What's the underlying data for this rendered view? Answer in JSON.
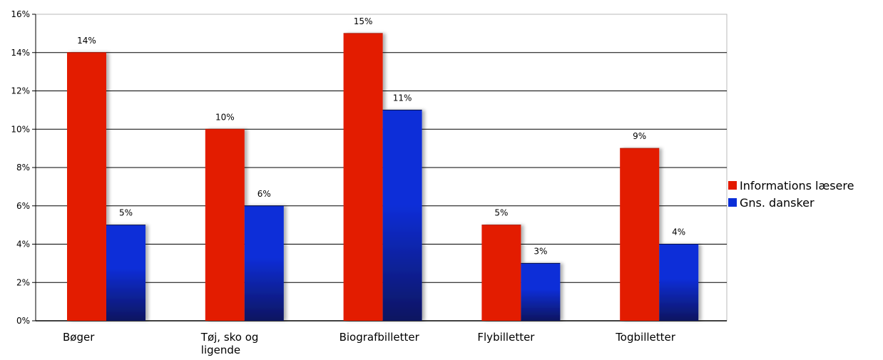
{
  "chart_data": {
    "type": "bar",
    "categories": [
      "Bøger",
      "Tøj, sko og ligende",
      "Biografbilletter",
      "Flybilletter",
      "Togbilletter"
    ],
    "category_lines": [
      [
        "Bøger"
      ],
      [
        "Tøj, sko og",
        "ligende"
      ],
      [
        "Biografbilletter"
      ],
      [
        "Flybilletter"
      ],
      [
        "Togbilletter"
      ]
    ],
    "series": [
      {
        "name": "Informations læsere",
        "values": [
          14,
          10,
          15,
          5,
          9
        ],
        "labels": [
          "14%",
          "10%",
          "15%",
          "5%",
          "9%"
        ],
        "color": "#e31a00"
      },
      {
        "name": "Gns. dansker",
        "values": [
          5,
          6,
          11,
          3,
          4
        ],
        "labels": [
          "5%",
          "6%",
          "11%",
          "3%",
          "4%"
        ],
        "color": "#0a2ed8",
        "color_dark": "#0a1560"
      }
    ],
    "y_ticks": [
      0,
      2,
      4,
      6,
      8,
      10,
      12,
      14,
      16
    ],
    "y_tick_labels": [
      "0%",
      "2%",
      "4%",
      "6%",
      "8%",
      "10%",
      "12%",
      "14%",
      "16%"
    ],
    "ylim": [
      0,
      16
    ],
    "grid": true,
    "legend": "right",
    "title": "",
    "xlabel": "",
    "ylabel": ""
  }
}
